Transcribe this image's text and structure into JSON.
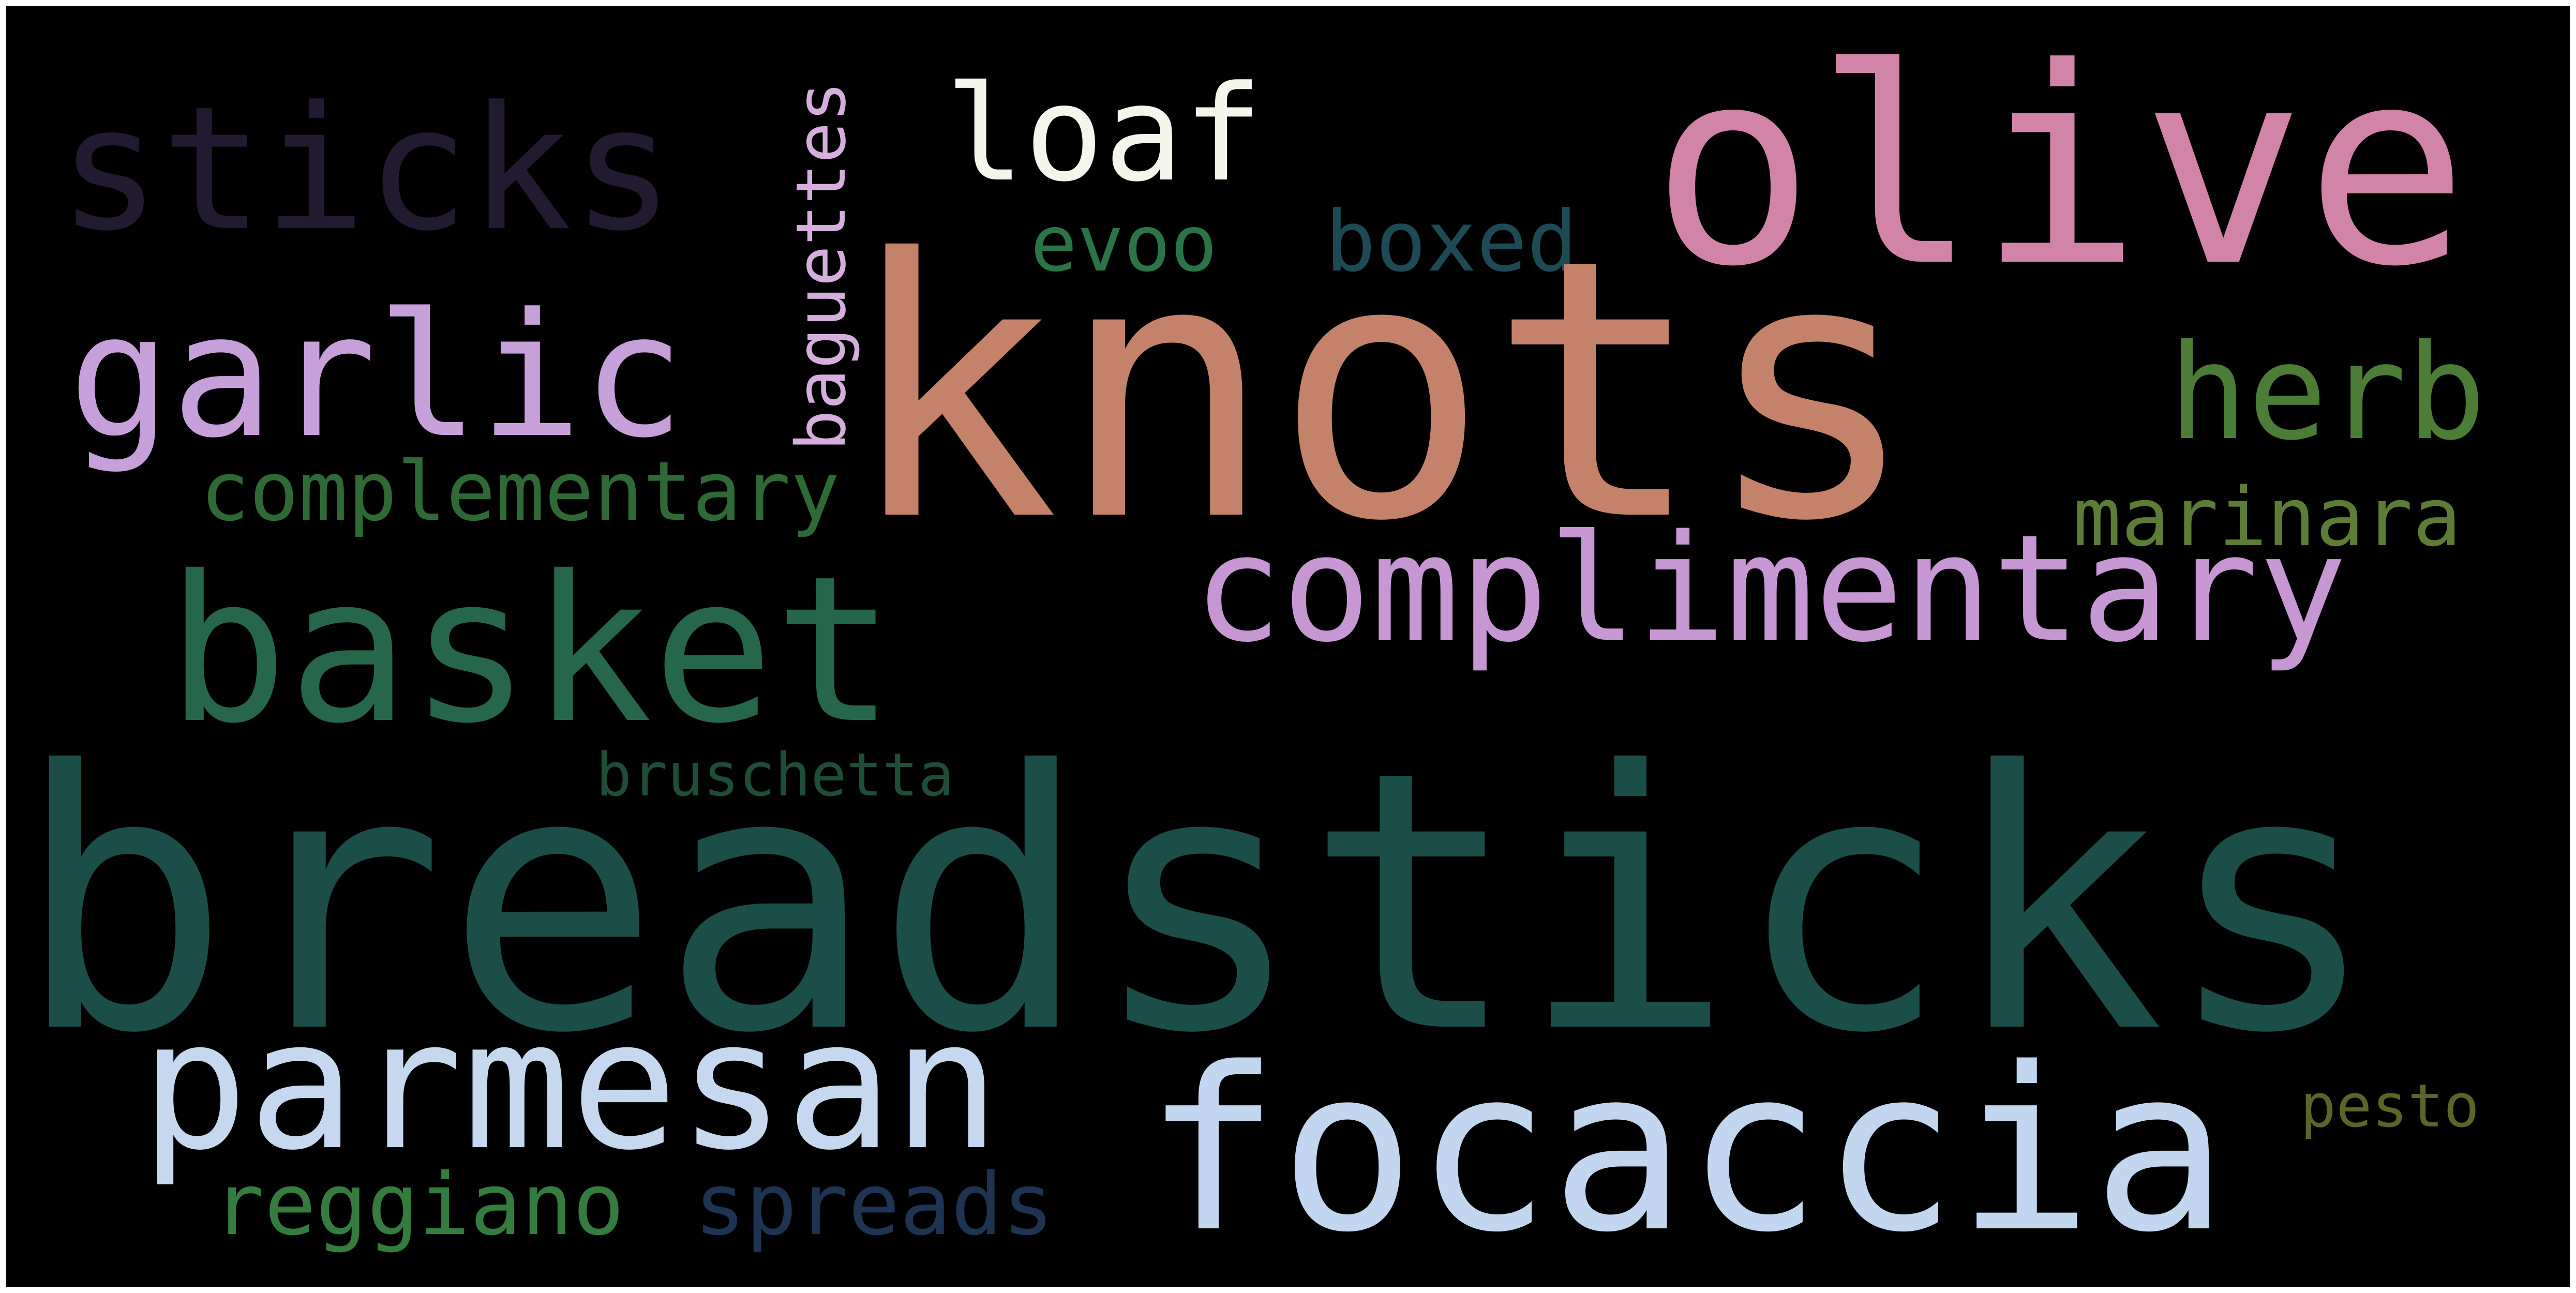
{
  "word_cloud": {
    "background_color": "#000000",
    "words": [
      {
        "id": "breadsticks",
        "text": "breadsticks",
        "color": "#1b4d49",
        "orientation": "horizontal"
      },
      {
        "id": "knots",
        "text": "knots",
        "color": "#c4826a",
        "orientation": "horizontal"
      },
      {
        "id": "olive",
        "text": "olive",
        "color": "#d183a8",
        "orientation": "horizontal"
      },
      {
        "id": "sticks",
        "text": "sticks",
        "color": "#211a31",
        "orientation": "horizontal"
      },
      {
        "id": "loaf",
        "text": "loaf",
        "color": "#f4f6ec",
        "orientation": "horizontal"
      },
      {
        "id": "garlic",
        "text": "garlic",
        "color": "#c7a0da",
        "orientation": "horizontal"
      },
      {
        "id": "basket",
        "text": "basket",
        "color": "#26664b",
        "orientation": "horizontal"
      },
      {
        "id": "complimentary",
        "text": "complimentary",
        "color": "#c697d2",
        "orientation": "horizontal"
      },
      {
        "id": "herb",
        "text": "herb",
        "color": "#4c7d37",
        "orientation": "horizontal"
      },
      {
        "id": "complementary",
        "text": "complementary",
        "color": "#2f6a36",
        "orientation": "horizontal"
      },
      {
        "id": "marinara",
        "text": "marinara",
        "color": "#5d7c35",
        "orientation": "horizontal"
      },
      {
        "id": "evoo",
        "text": "evoo",
        "color": "#2a7447",
        "orientation": "horizontal"
      },
      {
        "id": "boxed",
        "text": "boxed",
        "color": "#1d4a55",
        "orientation": "horizontal"
      },
      {
        "id": "baguettes",
        "text": "baguettes",
        "color": "#d6aede",
        "orientation": "vertical"
      },
      {
        "id": "bruschetta",
        "text": "bruschetta",
        "color": "#1f4e38",
        "orientation": "horizontal"
      },
      {
        "id": "parmesan",
        "text": "parmesan",
        "color": "#c6d8f0",
        "orientation": "horizontal"
      },
      {
        "id": "focaccia",
        "text": "focaccia",
        "color": "#c2d6ef",
        "orientation": "horizontal"
      },
      {
        "id": "reggiano",
        "text": "reggiano",
        "color": "#357d3e",
        "orientation": "horizontal"
      },
      {
        "id": "spreads",
        "text": "spreads",
        "color": "#1f3352",
        "orientation": "horizontal"
      },
      {
        "id": "pesto",
        "text": "pesto",
        "color": "#5c6528",
        "orientation": "horizontal"
      }
    ]
  }
}
